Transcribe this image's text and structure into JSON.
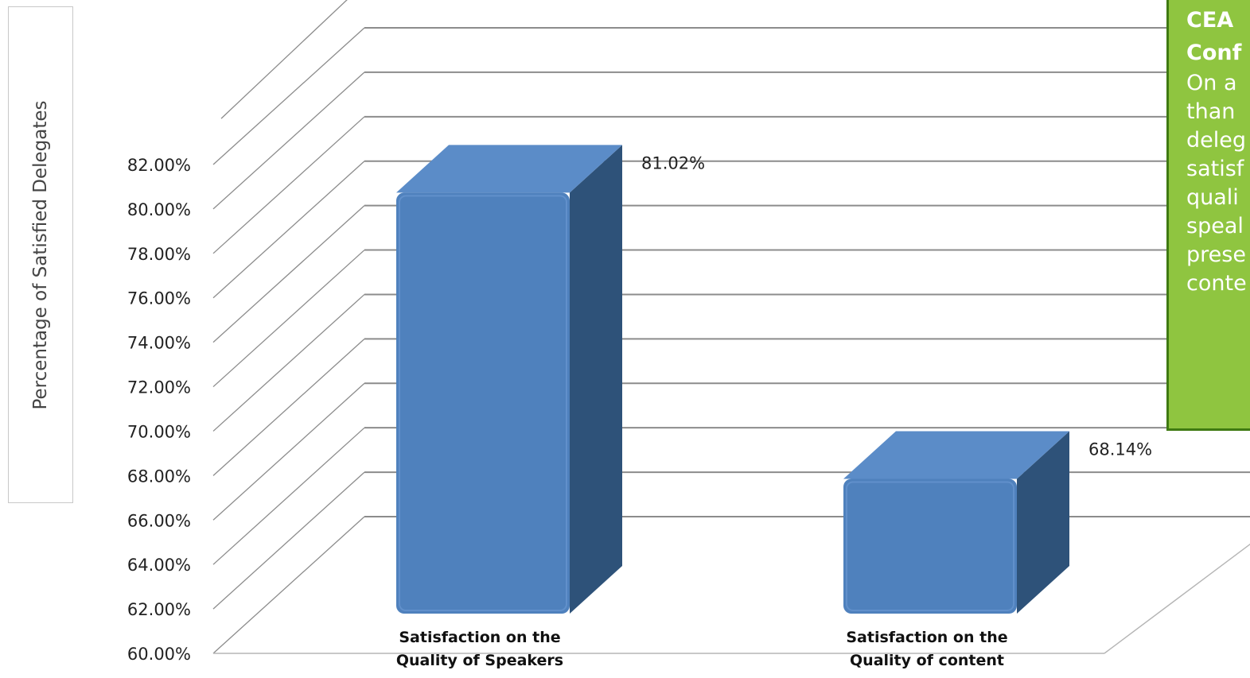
{
  "chart_data": {
    "type": "bar",
    "title": "",
    "xlabel": "",
    "ylabel": "Percentage of Satisfied Delegates",
    "categories": [
      [
        "Satisfaction on the",
        "Quality of Speakers"
      ],
      [
        "Satisfaction on the",
        "Quality of content"
      ]
    ],
    "values": [
      81.02,
      68.14
    ],
    "data_labels": [
      "81.02%",
      "68.14%"
    ],
    "ylim": [
      60,
      82
    ],
    "yticks": [
      "60.00%",
      "62.00%",
      "64.00%",
      "66.00%",
      "68.00%",
      "70.00%",
      "72.00%",
      "74.00%",
      "76.00%",
      "78.00%",
      "80.00%",
      "82.00%"
    ],
    "grid": true,
    "three_d": true,
    "colors": {
      "bar_front": "#4f81bd",
      "bar_side": "#2e5279",
      "bar_top": "#5b8cc8",
      "grid": "#8c8c8c"
    }
  },
  "note": {
    "title": [
      "CEA",
      "Conf"
    ],
    "lines": [
      "On a",
      "than",
      "deleg",
      "satisf",
      "quali",
      "speal",
      "prese",
      "conte"
    ],
    "colors": {
      "background": "#8fc540",
      "border": "#3f7a12",
      "text": "#ffffff"
    }
  }
}
